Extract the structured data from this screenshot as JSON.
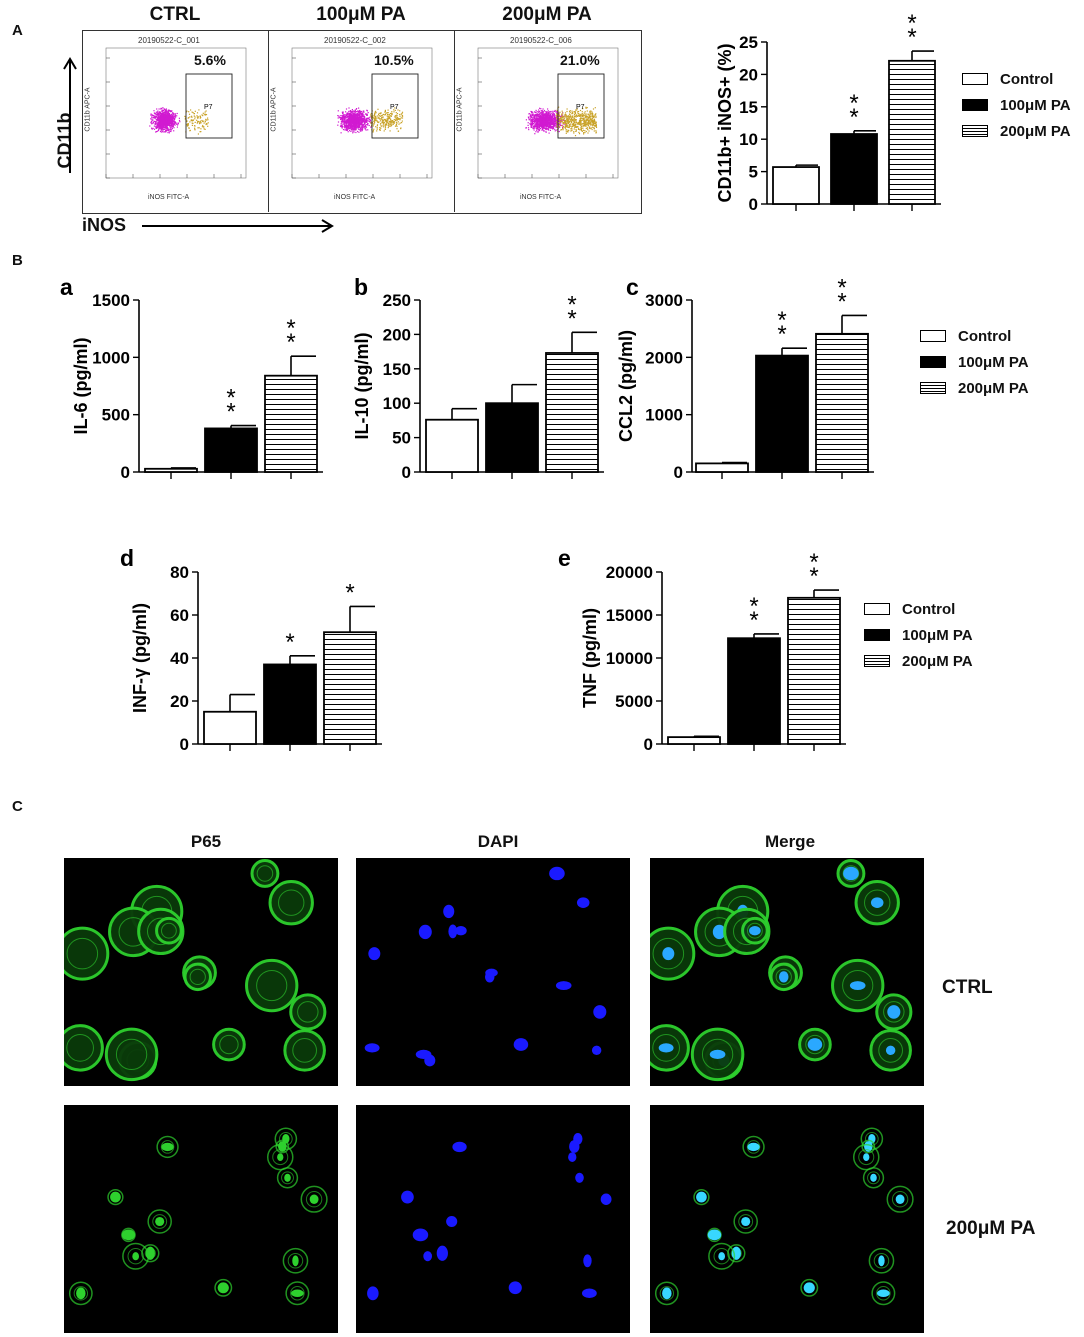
{
  "panels": {
    "A": "A",
    "B": "B",
    "C": "C"
  },
  "flow": {
    "conditions": [
      {
        "title": "CTRL",
        "id": "20190522-C_001",
        "percent": "5.6%",
        "gate": "P7"
      },
      {
        "title": "100μM PA",
        "id": "20190522-C_002",
        "percent": "10.5%",
        "gate": "P7"
      },
      {
        "title": "200μM PA",
        "id": "20190522-C_006",
        "percent": "21.0%",
        "gate": "P7"
      }
    ],
    "y_channel": "CD11b APC-A",
    "x_channel": "iNOS FITC-A",
    "y_axis_label": "CD11b",
    "x_axis_label": "iNOS"
  },
  "legend": {
    "items": [
      "Control",
      "100μM PA",
      "200μM PA"
    ]
  },
  "colors": {
    "bar_control": "#ffffff",
    "bar_100": "#000000",
    "bar_200": "#ffffff",
    "stripe": "#000000",
    "dot_main": "#d11ad1",
    "dot_gate": "#c9a227",
    "p65": "#2ed12e",
    "dapi": "#1a1aff"
  },
  "chart_data": [
    {
      "type": "bar",
      "panel": "A",
      "title": "",
      "ylabel": "CD11b+ iNOS+ (%)",
      "ylim": [
        0,
        25
      ],
      "yticks": [
        0,
        5,
        10,
        15,
        20,
        25
      ],
      "categories": [
        "Control",
        "100μM PA",
        "200μM PA"
      ],
      "values": [
        5.7,
        10.8,
        22.1
      ],
      "errors": [
        0.3,
        0.5,
        1.5
      ],
      "significance": [
        "",
        "**",
        "**"
      ]
    },
    {
      "type": "bar",
      "panel": "a",
      "title": "",
      "ylabel": "IL-6 (pg/ml)",
      "ylim": [
        0,
        1500
      ],
      "yticks": [
        0,
        500,
        1000,
        1500
      ],
      "categories": [
        "Control",
        "100μM PA",
        "200μM PA"
      ],
      "values": [
        28,
        380,
        840
      ],
      "errors": [
        8,
        25,
        170
      ],
      "significance": [
        "",
        "**",
        "**"
      ]
    },
    {
      "type": "bar",
      "panel": "b",
      "title": "",
      "ylabel": "IL-10 (pg/ml)",
      "ylim": [
        0,
        250
      ],
      "yticks": [
        0,
        50,
        100,
        150,
        200,
        250
      ],
      "categories": [
        "Control",
        "100μM PA",
        "200μM PA"
      ],
      "values": [
        76,
        100,
        173
      ],
      "errors": [
        16,
        27,
        30
      ],
      "significance": [
        "",
        "",
        "**"
      ]
    },
    {
      "type": "bar",
      "panel": "c",
      "title": "",
      "ylabel": "CCL2 (pg/ml)",
      "ylim": [
        0,
        3000
      ],
      "yticks": [
        0,
        1000,
        2000,
        3000
      ],
      "categories": [
        "Control",
        "100μM PA",
        "200μM PA"
      ],
      "values": [
        150,
        2030,
        2410
      ],
      "errors": [
        15,
        130,
        320
      ],
      "significance": [
        "",
        "**",
        "**"
      ]
    },
    {
      "type": "bar",
      "panel": "d",
      "title": "",
      "ylabel": "INF-γ (pg/ml)",
      "ylim": [
        0,
        80
      ],
      "yticks": [
        0,
        20,
        40,
        60,
        80
      ],
      "categories": [
        "Control",
        "100μM PA",
        "200μM PA"
      ],
      "values": [
        15,
        37,
        52
      ],
      "errors": [
        8,
        4,
        12
      ],
      "significance": [
        "",
        "*",
        "*"
      ]
    },
    {
      "type": "bar",
      "panel": "e",
      "title": "",
      "ylabel": "TNF (pg/ml)",
      "ylim": [
        0,
        20000
      ],
      "yticks": [
        0,
        5000,
        10000,
        15000,
        20000
      ],
      "categories": [
        "Control",
        "100μM PA",
        "200μM PA"
      ],
      "values": [
        800,
        12300,
        17000
      ],
      "errors": [
        100,
        500,
        900
      ],
      "significance": [
        "",
        "**",
        "**"
      ]
    }
  ],
  "images": {
    "columns": [
      "P65",
      "DAPI",
      "Merge"
    ],
    "rows": [
      "CTRL",
      "200μM PA"
    ]
  }
}
